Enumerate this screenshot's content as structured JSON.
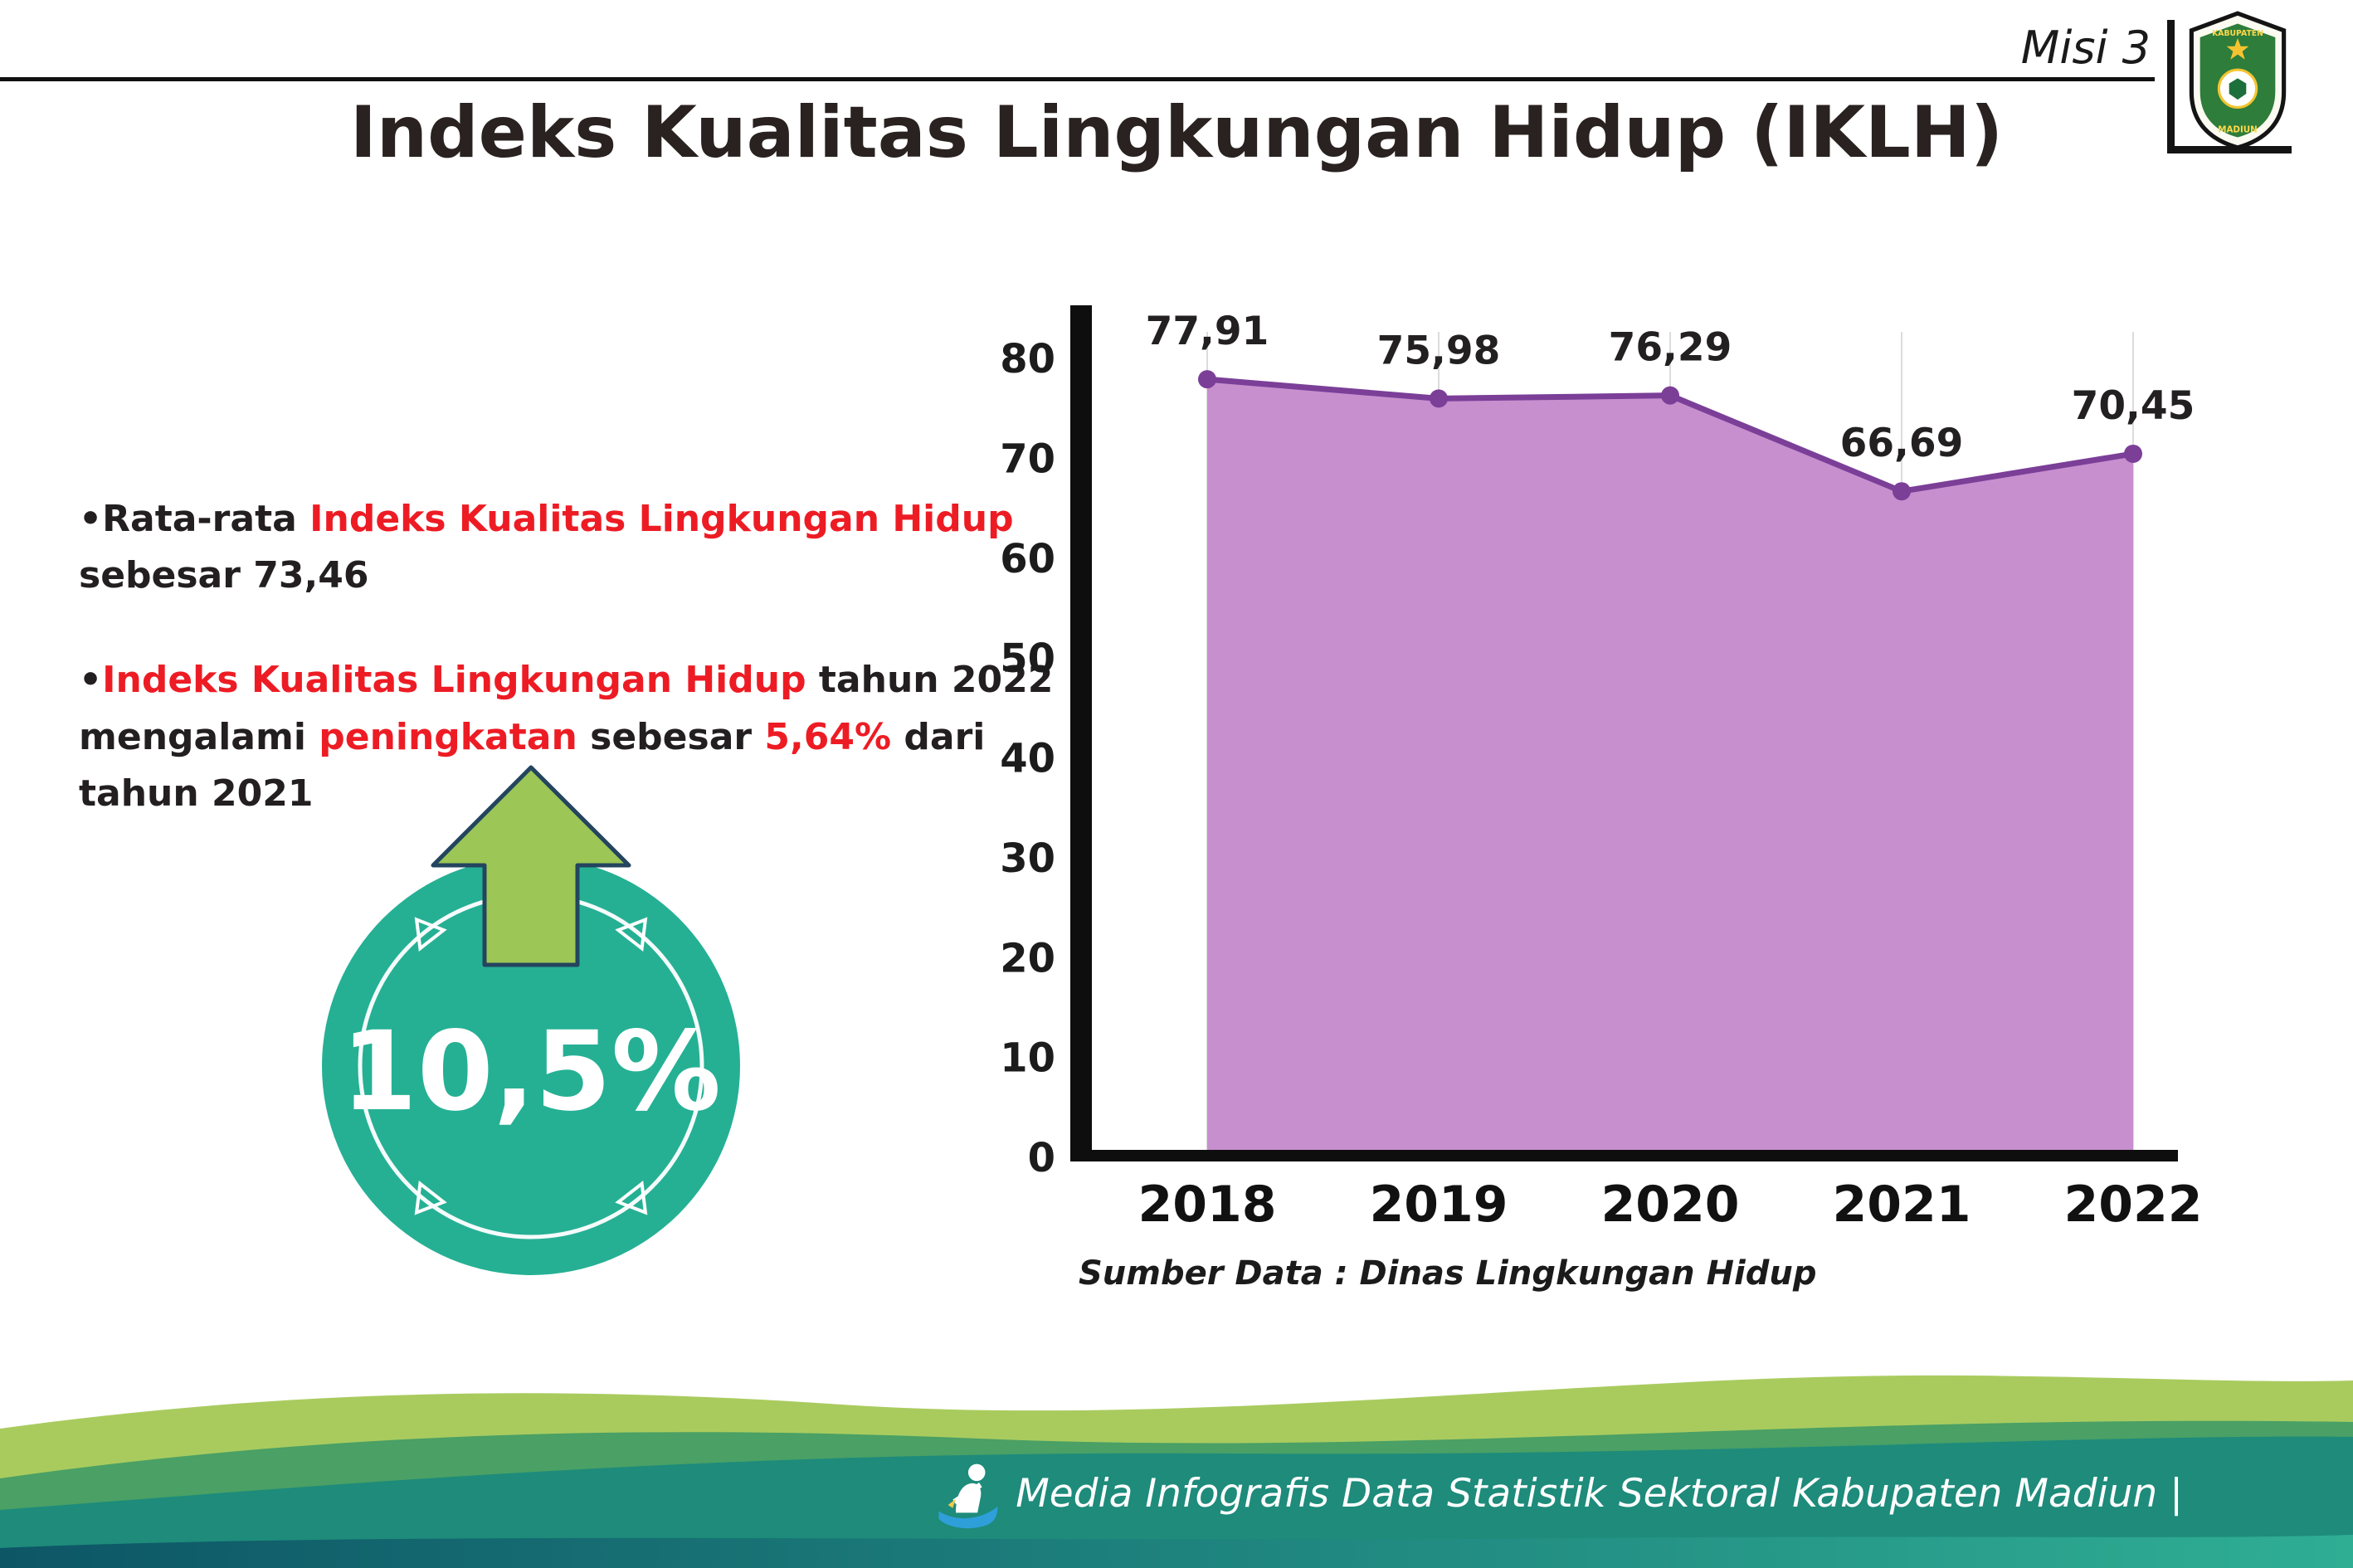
{
  "page": {
    "misi_label": "Misi 3",
    "title": "Indeks Kualitas Lingkungan Hidup (IKLH)"
  },
  "logo": {
    "top_text": "KABUPATEN",
    "bottom_text": "MADIUN"
  },
  "bullets": {
    "marker": "•",
    "b1": [
      {
        "text": "Rata-rata ",
        "color": "dark"
      },
      {
        "text": "Indeks Kualitas Lingkungan Hidup",
        "color": "red"
      },
      {
        "text": " sebesar 73,46",
        "color": "dark"
      }
    ],
    "b2": [
      {
        "text": "Indeks Kualitas Lingkungan Hidup",
        "color": "red"
      },
      {
        "text": " tahun 2022 mengalami ",
        "color": "dark"
      },
      {
        "text": "peningkatan",
        "color": "red"
      },
      {
        "text": " sebesar ",
        "color": "dark"
      },
      {
        "text": "5,64%",
        "color": "red"
      },
      {
        "text": " dari tahun 2021",
        "color": "dark"
      }
    ]
  },
  "badge": {
    "value": "10,5%"
  },
  "chart_data": {
    "type": "area",
    "title": "",
    "xlabel": "",
    "ylabel": "",
    "categories": [
      "2018",
      "2019",
      "2020",
      "2021",
      "2022"
    ],
    "values": [
      77.91,
      75.98,
      76.29,
      66.69,
      70.45
    ],
    "value_labels": [
      "77,91",
      "75,98",
      "76,29",
      "66,69",
      "70,45"
    ],
    "ylim": [
      0,
      80
    ],
    "yticks": [
      0,
      10,
      20,
      30,
      40,
      50,
      60,
      70,
      80
    ],
    "grid": "light vertical gridlines",
    "legend": "none",
    "line_color": "#7B3F98",
    "fill_color": "#C78FCE",
    "source": "Sumber Data : Dinas Lingkungan Hidup"
  },
  "footer": {
    "text": "Media Infografis Data Statistik Sektoral Kabupaten Madiun |"
  },
  "colors": {
    "red": "#ED1C24",
    "dark_text": "#231F20",
    "title_text": "#292220",
    "badge_teal": "#25B094",
    "arrow_green": "#9CC655",
    "arrow_outline": "#23455F",
    "axis_black": "#0E0E0E",
    "wave_lime": "#A9CB5E",
    "wave_green": "#4AA065",
    "wave_teal": "#1E8B7B",
    "strip_dark": "#0D5666",
    "strip_light": "#2FAE94"
  }
}
